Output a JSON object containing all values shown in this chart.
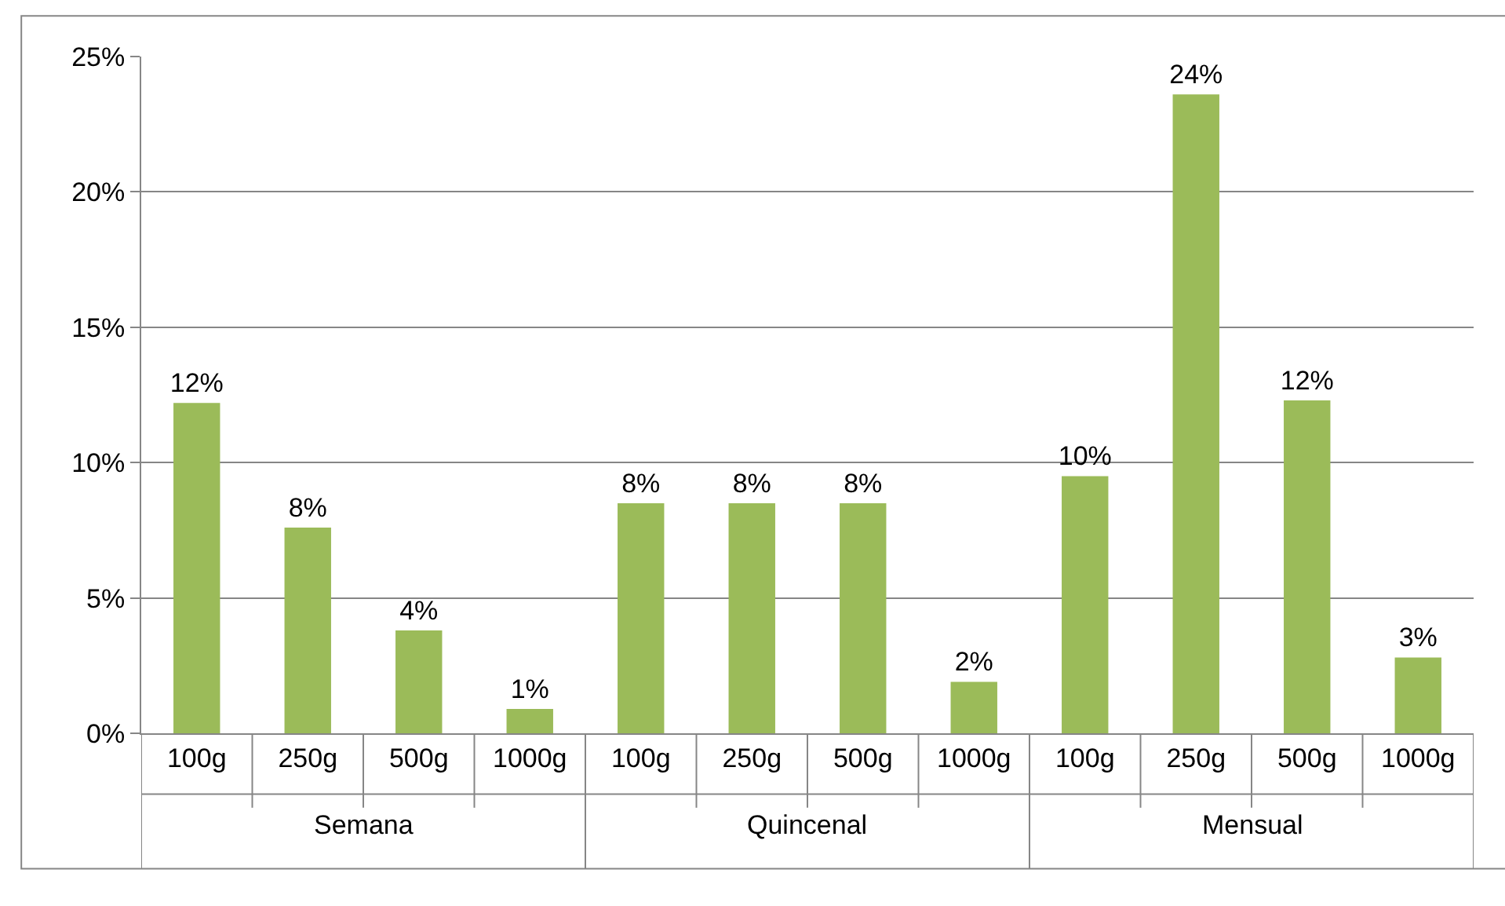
{
  "chart_data": {
    "type": "bar",
    "categories": [
      "100g",
      "250g",
      "500g",
      "1000g",
      "100g",
      "250g",
      "500g",
      "1000g",
      "100g",
      "250g",
      "500g",
      "1000g"
    ],
    "values": [
      12.2,
      7.6,
      3.8,
      0.9,
      8.5,
      8.5,
      8.5,
      1.9,
      9.5,
      23.6,
      12.3,
      2.8
    ],
    "value_labels": [
      "12%",
      "8%",
      "4%",
      "1%",
      "8%",
      "8%",
      "8%",
      "2%",
      "10%",
      "24%",
      "12%",
      "3%"
    ],
    "color": "#9bbb59",
    "annotations": [
      "Semana",
      "Quincenal",
      "Mensual"
    ],
    "ylim": [
      0,
      25
    ],
    "yticks": [
      {
        "value": 0,
        "label": "0%"
      },
      {
        "value": 5,
        "label": "5%"
      },
      {
        "value": 10,
        "label": "10%"
      },
      {
        "value": 15,
        "label": "15%"
      },
      {
        "value": 20,
        "label": "20%"
      },
      {
        "value": 25,
        "label": "25%"
      }
    ],
    "grid": "y",
    "legend": false
  }
}
